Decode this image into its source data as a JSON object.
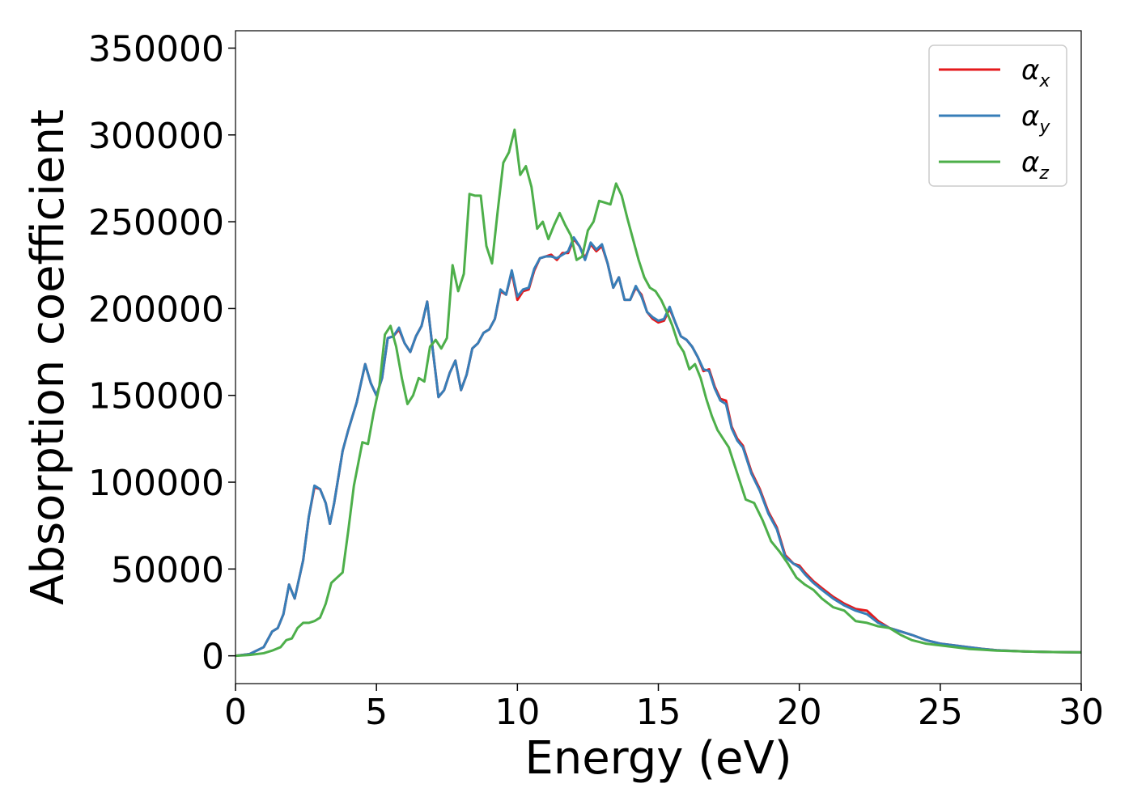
{
  "chart_data": {
    "type": "line",
    "xlabel": "Energy (eV)",
    "ylabel": "Absorption coefficient",
    "xlim": [
      0,
      30
    ],
    "ylim": [
      -16000,
      360000
    ],
    "xticks": [
      0,
      5,
      10,
      15,
      20,
      25,
      30
    ],
    "yticks": [
      0,
      50000,
      100000,
      150000,
      200000,
      250000,
      300000,
      350000
    ],
    "grid": false,
    "legend_position": "top-right",
    "series": [
      {
        "name": "α",
        "subscript": "x",
        "color": "#e41a1c",
        "x": [
          0,
          0.5,
          1.0,
          1.3,
          1.5,
          1.7,
          1.9,
          2.1,
          2.4,
          2.6,
          2.8,
          3.0,
          3.2,
          3.35,
          3.5,
          3.8,
          4.0,
          4.3,
          4.6,
          4.8,
          5.0,
          5.2,
          5.4,
          5.6,
          5.8,
          6.0,
          6.2,
          6.4,
          6.6,
          6.8,
          7.0,
          7.2,
          7.4,
          7.6,
          7.8,
          8.0,
          8.2,
          8.4,
          8.6,
          8.8,
          9.0,
          9.2,
          9.4,
          9.6,
          9.8,
          10.0,
          10.2,
          10.4,
          10.6,
          10.8,
          11.0,
          11.2,
          11.4,
          11.6,
          11.8,
          12.0,
          12.2,
          12.4,
          12.6,
          12.8,
          13.0,
          13.2,
          13.4,
          13.6,
          13.8,
          14.0,
          14.2,
          14.4,
          14.6,
          14.8,
          15.0,
          15.2,
          15.4,
          15.6,
          15.8,
          16.0,
          16.2,
          16.4,
          16.6,
          16.8,
          17.0,
          17.2,
          17.4,
          17.6,
          17.8,
          18.0,
          18.3,
          18.6,
          18.9,
          19.2,
          19.5,
          19.8,
          20.0,
          20.2,
          20.5,
          20.8,
          21.2,
          21.6,
          22.0,
          22.4,
          22.8,
          23.2,
          23.6,
          24.0,
          24.5,
          25.0,
          25.5,
          26.0,
          26.5,
          27.0,
          28.0,
          29.0,
          30.0
        ],
        "y": [
          0,
          1000,
          5000,
          14000,
          16000,
          24000,
          41000,
          33000,
          55000,
          80000,
          97000,
          96000,
          88000,
          76000,
          88000,
          118000,
          130000,
          146000,
          168000,
          157000,
          150000,
          160000,
          183000,
          184000,
          188000,
          180000,
          175000,
          184000,
          190000,
          204000,
          176000,
          149000,
          153000,
          163000,
          170000,
          153000,
          162000,
          177000,
          180000,
          186000,
          188000,
          194000,
          210000,
          208000,
          221000,
          205000,
          210000,
          211000,
          222000,
          229000,
          230000,
          231000,
          228000,
          232000,
          232000,
          240000,
          236000,
          229000,
          237000,
          233000,
          236000,
          226000,
          212000,
          218000,
          205000,
          205000,
          212000,
          208000,
          198000,
          194000,
          192000,
          193000,
          200000,
          192000,
          184000,
          182000,
          178000,
          172000,
          164000,
          165000,
          155000,
          148000,
          147000,
          132000,
          125000,
          121000,
          106000,
          96000,
          83000,
          74000,
          58000,
          53000,
          52000,
          48000,
          43000,
          39000,
          34000,
          30000,
          27000,
          26000,
          20000,
          16000,
          14000,
          12000,
          9000,
          7000,
          6000,
          5000,
          4000,
          3200,
          2500,
          2200,
          2000
        ]
      },
      {
        "name": "α",
        "subscript": "y",
        "color": "#377eb8",
        "x": [
          0,
          0.5,
          1.0,
          1.3,
          1.5,
          1.7,
          1.9,
          2.1,
          2.4,
          2.6,
          2.8,
          3.0,
          3.2,
          3.35,
          3.5,
          3.8,
          4.0,
          4.3,
          4.6,
          4.8,
          5.0,
          5.2,
          5.4,
          5.6,
          5.8,
          6.0,
          6.2,
          6.4,
          6.6,
          6.8,
          7.0,
          7.2,
          7.4,
          7.6,
          7.8,
          8.0,
          8.2,
          8.4,
          8.6,
          8.8,
          9.0,
          9.2,
          9.4,
          9.6,
          9.8,
          10.0,
          10.2,
          10.4,
          10.6,
          10.8,
          11.0,
          11.2,
          11.4,
          11.6,
          11.8,
          12.0,
          12.2,
          12.4,
          12.6,
          12.8,
          13.0,
          13.2,
          13.4,
          13.6,
          13.8,
          14.0,
          14.2,
          14.4,
          14.6,
          14.8,
          15.0,
          15.2,
          15.4,
          15.6,
          15.8,
          16.0,
          16.2,
          16.4,
          16.6,
          16.8,
          17.0,
          17.2,
          17.4,
          17.6,
          17.8,
          18.0,
          18.3,
          18.6,
          18.9,
          19.2,
          19.5,
          19.8,
          20.0,
          20.2,
          20.5,
          20.8,
          21.2,
          21.6,
          22.0,
          22.4,
          22.8,
          23.2,
          23.6,
          24.0,
          24.5,
          25.0,
          25.5,
          26.0,
          26.5,
          27.0,
          28.0,
          29.0,
          30.0
        ],
        "y": [
          0,
          1000,
          5000,
          14000,
          16000,
          24000,
          41000,
          33000,
          55000,
          80000,
          98000,
          96000,
          88000,
          76000,
          88000,
          118000,
          130000,
          146000,
          168000,
          157000,
          150000,
          160000,
          183000,
          184000,
          189000,
          180000,
          175000,
          184000,
          190000,
          204000,
          176000,
          149000,
          153000,
          163000,
          170000,
          153000,
          162000,
          177000,
          180000,
          186000,
          188000,
          194000,
          211000,
          208000,
          222000,
          207000,
          211000,
          212000,
          223000,
          229000,
          230000,
          230000,
          229000,
          231000,
          233000,
          241000,
          236000,
          228000,
          238000,
          234000,
          237000,
          226000,
          212000,
          218000,
          205000,
          205000,
          213000,
          207000,
          198000,
          195000,
          193000,
          194000,
          201000,
          192000,
          184000,
          182000,
          178000,
          172000,
          165000,
          164000,
          154000,
          147000,
          145000,
          131000,
          124000,
          120000,
          105000,
          95000,
          82000,
          73000,
          57000,
          53000,
          51000,
          47000,
          42000,
          38000,
          33000,
          29000,
          26000,
          24000,
          19000,
          16000,
          14000,
          12000,
          9000,
          7000,
          6000,
          5000,
          4000,
          3200,
          2500,
          2200,
          2000
        ]
      },
      {
        "name": "α",
        "subscript": "z",
        "color": "#4daf4a",
        "x": [
          0,
          0.5,
          1.0,
          1.3,
          1.6,
          1.8,
          2.0,
          2.2,
          2.4,
          2.6,
          2.8,
          3.0,
          3.2,
          3.4,
          3.6,
          3.8,
          4.0,
          4.2,
          4.5,
          4.7,
          4.9,
          5.1,
          5.3,
          5.5,
          5.7,
          5.9,
          6.1,
          6.3,
          6.5,
          6.7,
          6.9,
          7.1,
          7.3,
          7.5,
          7.7,
          7.9,
          8.1,
          8.3,
          8.5,
          8.7,
          8.9,
          9.1,
          9.3,
          9.5,
          9.7,
          9.9,
          10.1,
          10.3,
          10.5,
          10.7,
          10.9,
          11.1,
          11.3,
          11.5,
          11.7,
          11.9,
          12.1,
          12.3,
          12.5,
          12.7,
          12.9,
          13.1,
          13.3,
          13.5,
          13.7,
          13.9,
          14.1,
          14.3,
          14.5,
          14.7,
          14.9,
          15.1,
          15.3,
          15.5,
          15.7,
          15.9,
          16.1,
          16.3,
          16.5,
          16.7,
          16.9,
          17.1,
          17.3,
          17.5,
          17.8,
          18.1,
          18.4,
          18.7,
          19.0,
          19.3,
          19.6,
          19.9,
          20.2,
          20.5,
          20.8,
          21.2,
          21.6,
          22.0,
          22.4,
          22.8,
          23.2,
          23.6,
          24.0,
          24.5,
          25.0,
          25.5,
          26.0,
          26.5,
          27.0,
          28.0,
          29.0,
          30.0
        ],
        "y": [
          0,
          500,
          1500,
          3000,
          5000,
          9000,
          10000,
          16000,
          19000,
          19000,
          20000,
          22000,
          30000,
          42000,
          45000,
          48000,
          72000,
          98000,
          123000,
          122000,
          140000,
          155000,
          185000,
          190000,
          178000,
          160000,
          145000,
          150000,
          160000,
          158000,
          178000,
          182000,
          177000,
          183000,
          225000,
          210000,
          220000,
          266000,
          265000,
          265000,
          236000,
          226000,
          256000,
          284000,
          290000,
          303000,
          277000,
          282000,
          270000,
          246000,
          250000,
          240000,
          248000,
          255000,
          248000,
          242000,
          228000,
          230000,
          245000,
          250000,
          262000,
          261000,
          260000,
          272000,
          265000,
          252000,
          240000,
          228000,
          218000,
          212000,
          210000,
          205000,
          198000,
          190000,
          180000,
          175000,
          165000,
          168000,
          160000,
          148000,
          138000,
          130000,
          125000,
          120000,
          105000,
          90000,
          88000,
          78000,
          66000,
          60000,
          53000,
          45000,
          41000,
          38000,
          33000,
          28000,
          26000,
          20000,
          19000,
          17000,
          16000,
          12000,
          9000,
          7000,
          6000,
          5000,
          4000,
          3500,
          3000,
          2500,
          2200,
          2000
        ]
      }
    ]
  }
}
